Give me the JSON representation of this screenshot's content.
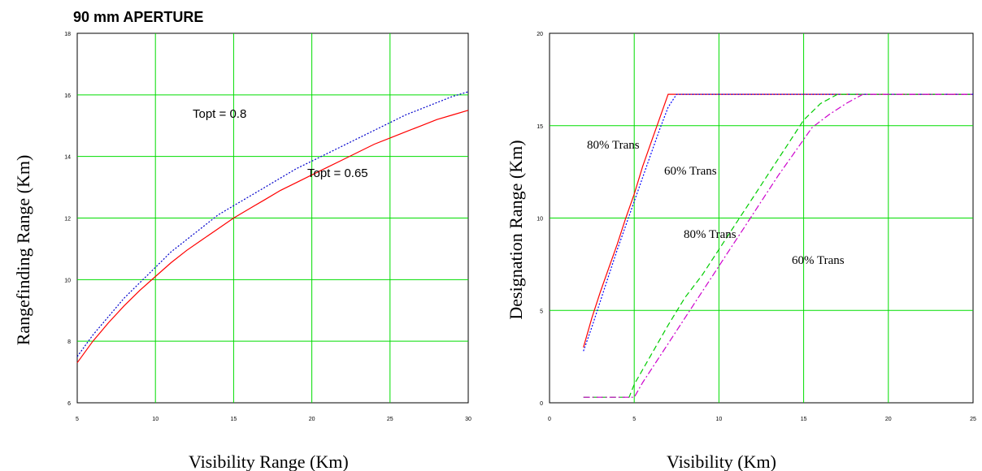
{
  "chart_data": [
    {
      "type": "line",
      "title": "90 mm APERTURE",
      "xlabel": "Visibility Range  (Km)",
      "ylabel": "Rangefinding Range (Km)",
      "xlim": [
        5,
        30
      ],
      "ylim": [
        6,
        18
      ],
      "xticks": [
        5,
        10,
        15,
        20,
        25,
        30
      ],
      "yticks": [
        6,
        8,
        10,
        12,
        14,
        16,
        18
      ],
      "xtick_labels": [
        "5",
        "10",
        "15",
        "20",
        "25",
        "30"
      ],
      "ytick_labels": [
        "6",
        "8",
        "10",
        "12",
        "14",
        "16",
        "18"
      ],
      "grid": true,
      "series": [
        {
          "name": "Topt = 0.8",
          "color": "#0000cc",
          "dash": "dotted",
          "x": [
            5,
            6,
            7,
            8,
            9,
            10,
            11,
            12,
            13,
            14,
            15,
            16,
            17,
            18,
            19,
            20,
            21,
            22,
            23,
            24,
            25,
            26,
            27,
            28,
            29,
            30
          ],
          "y": [
            7.5,
            8.2,
            8.8,
            9.4,
            9.9,
            10.4,
            10.9,
            11.3,
            11.7,
            12.1,
            12.4,
            12.7,
            13.0,
            13.3,
            13.6,
            13.85,
            14.1,
            14.35,
            14.6,
            14.85,
            15.1,
            15.35,
            15.55,
            15.75,
            15.95,
            16.1
          ]
        },
        {
          "name": "Topt = 0.65",
          "color": "#ff0000",
          "dash": "solid",
          "x": [
            5,
            6,
            7,
            8,
            9,
            10,
            11,
            12,
            13,
            14,
            15,
            16,
            17,
            18,
            19,
            20,
            21,
            22,
            23,
            24,
            25,
            26,
            27,
            28,
            29,
            30
          ],
          "y": [
            7.3,
            8.0,
            8.6,
            9.15,
            9.65,
            10.1,
            10.55,
            10.95,
            11.3,
            11.65,
            12.0,
            12.3,
            12.6,
            12.9,
            13.15,
            13.4,
            13.65,
            13.9,
            14.15,
            14.4,
            14.6,
            14.8,
            15.0,
            15.2,
            15.35,
            15.5
          ]
        }
      ],
      "annotations": [
        {
          "text": "Topt = 0.8"
        },
        {
          "text": "Topt = 0.65"
        }
      ]
    },
    {
      "type": "line",
      "title": "",
      "xlabel": "Visibility (Km)",
      "ylabel": "Designation Range (Km)",
      "xlim": [
        0,
        25
      ],
      "ylim": [
        0,
        20
      ],
      "xticks": [
        0,
        5,
        10,
        15,
        20,
        25
      ],
      "yticks": [
        0,
        5,
        10,
        15,
        20
      ],
      "xtick_labels": [
        "0",
        "5",
        "10",
        "15",
        "20",
        "25"
      ],
      "ytick_labels": [
        "0",
        "5",
        "10",
        "15",
        "20"
      ],
      "grid": true,
      "series": [
        {
          "name": "80% Trans",
          "color": "#ff0000",
          "dash": "solid",
          "x": [
            2.0,
            2.5,
            3.0,
            3.5,
            4.0,
            4.5,
            5.0,
            5.5,
            6.0,
            6.5,
            7.0,
            7.5,
            8.0,
            10,
            15,
            20,
            25
          ],
          "y": [
            3.0,
            4.6,
            6.0,
            7.3,
            8.6,
            10.0,
            11.3,
            12.8,
            14.1,
            15.4,
            16.7,
            16.7,
            16.7,
            16.7,
            16.7,
            16.7,
            16.7
          ]
        },
        {
          "name": "60% Trans",
          "color": "#0000ff",
          "dash": "dotted",
          "x": [
            2.0,
            2.5,
            3.0,
            3.5,
            4.0,
            4.5,
            5.0,
            5.5,
            6.0,
            6.5,
            7.0,
            7.5,
            8.0,
            10,
            15,
            20,
            25
          ],
          "y": [
            2.8,
            4.1,
            5.5,
            6.9,
            8.3,
            9.6,
            10.9,
            12.2,
            13.5,
            14.8,
            16.0,
            16.7,
            16.7,
            16.7,
            16.7,
            16.7,
            16.7
          ]
        },
        {
          "name": "80% Trans",
          "color": "#00cc00",
          "dash": "dashed",
          "x": [
            2.0,
            4.7,
            5.0,
            6.0,
            7.0,
            8.0,
            9.0,
            10.0,
            11.0,
            12.0,
            13.0,
            14.0,
            15.0,
            16.0,
            17.0,
            17.5,
            20,
            25
          ],
          "y": [
            0.3,
            0.3,
            1.0,
            2.6,
            4.2,
            5.7,
            6.9,
            8.3,
            9.7,
            11.1,
            12.5,
            13.9,
            15.3,
            16.2,
            16.7,
            16.7,
            16.7,
            16.7
          ]
        },
        {
          "name": "60% Trans",
          "color": "#cc00cc",
          "dash": "dashdot",
          "x": [
            2.0,
            5.0,
            5.5,
            6.5,
            7.5,
            8.5,
            9.5,
            10.5,
            11.5,
            12.5,
            13.5,
            14.5,
            15.5,
            16.5,
            17.5,
            18.5,
            19.0,
            20,
            25
          ],
          "y": [
            0.3,
            0.3,
            1.1,
            2.5,
            3.9,
            5.3,
            6.7,
            8.1,
            9.5,
            10.9,
            12.3,
            13.6,
            14.9,
            15.6,
            16.2,
            16.7,
            16.7,
            16.7,
            16.7
          ]
        }
      ],
      "annotations": [
        {
          "text": "80% Trans"
        },
        {
          "text": "60% Trans"
        },
        {
          "text": "80% Trans"
        },
        {
          "text": "60% Trans"
        }
      ]
    }
  ]
}
